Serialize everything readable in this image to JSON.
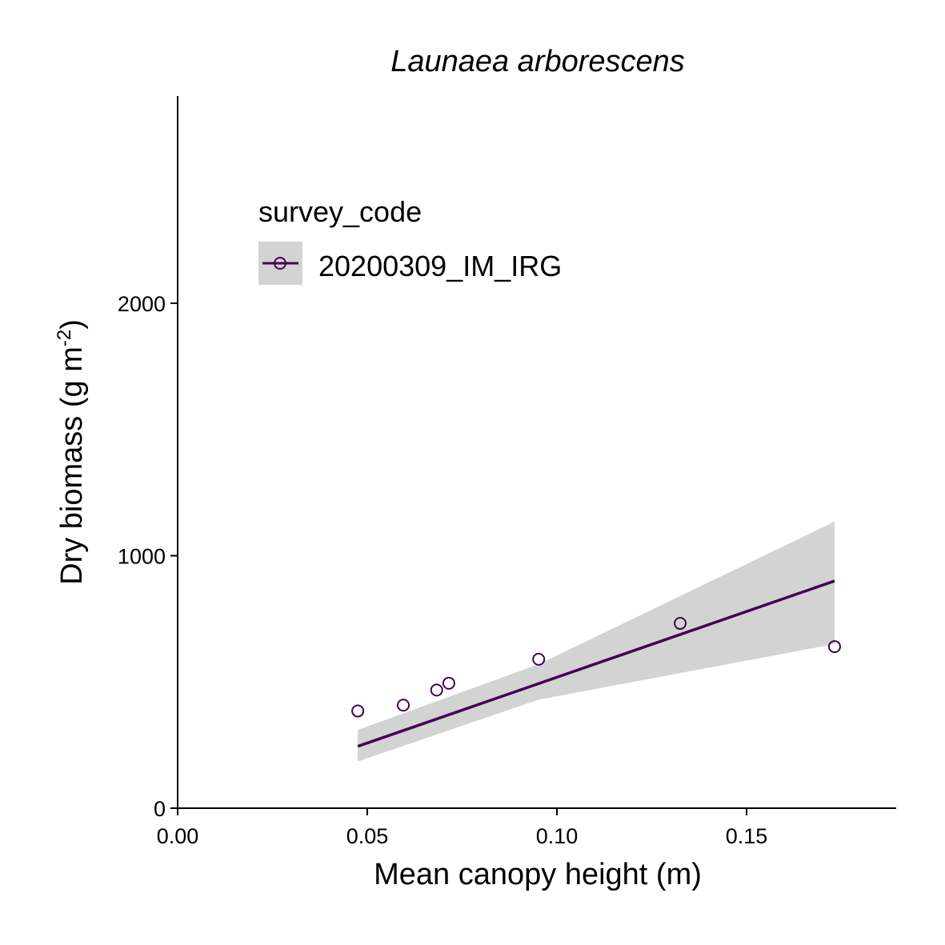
{
  "chart_data": {
    "type": "scatter",
    "title": "Launaea arborescens",
    "xlabel": "Mean canopy height (m)",
    "ylabel_main": "Dry biomass (g m",
    "ylabel_sup": "-2",
    "ylabel_close": ")",
    "xlim": [
      0,
      0.19
    ],
    "ylim": [
      0,
      2800
    ],
    "x_ticks": [
      0.0,
      0.05,
      0.1,
      0.15
    ],
    "x_tick_labels": [
      "0.00",
      "0.05",
      "0.10",
      "0.15"
    ],
    "y_ticks": [
      0,
      1000,
      2000
    ],
    "y_tick_labels": [
      "0",
      "1000",
      "2000"
    ],
    "grid": false,
    "legend": {
      "title": "survey_code",
      "placement": "top-left inside"
    },
    "series": [
      {
        "name": "20200309_IM_IRG",
        "color": "#440154",
        "points": [
          {
            "x": 0.0475,
            "y": 385
          },
          {
            "x": 0.0595,
            "y": 408
          },
          {
            "x": 0.0683,
            "y": 468
          },
          {
            "x": 0.0715,
            "y": 495
          },
          {
            "x": 0.0952,
            "y": 590
          },
          {
            "x": 0.1325,
            "y": 732
          },
          {
            "x": 0.1732,
            "y": 640
          }
        ],
        "fit_line": [
          {
            "x": 0.0475,
            "y": 245
          },
          {
            "x": 0.1732,
            "y": 900
          }
        ],
        "confidence_band": [
          {
            "x": 0.0475,
            "lower": 185,
            "upper": 310
          },
          {
            "x": 0.0952,
            "lower": 430,
            "upper": 570
          },
          {
            "x": 0.1732,
            "lower": 650,
            "upper": 1135
          }
        ]
      }
    ],
    "band_color": "#d3d3d3"
  }
}
